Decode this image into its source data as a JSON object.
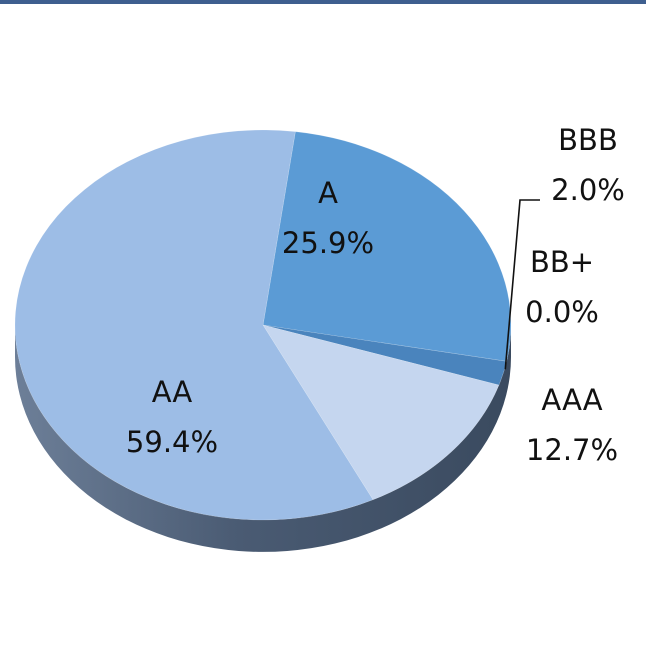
{
  "chart_data": {
    "type": "pie",
    "title": "",
    "slices": [
      {
        "label": "A",
        "value": 25.9,
        "value_text": "25.9%",
        "color": "#5b9bd5"
      },
      {
        "label": "BBB",
        "value": 2.0,
        "value_text": "2.0%",
        "color": "#4a84bd"
      },
      {
        "label": "BB+",
        "value": 0.0,
        "value_text": "0.0%",
        "color": "#4a84bd"
      },
      {
        "label": "AAA",
        "value": 12.7,
        "value_text": "12.7%",
        "color": "#c5d6ef"
      },
      {
        "label": "AA",
        "value": 59.4,
        "value_text": "59.4%",
        "color": "#9dbde6"
      }
    ],
    "legend": "none",
    "style": "3d-tilted",
    "side_color": "#4f6179",
    "rule_color": "#3e5f8f"
  }
}
